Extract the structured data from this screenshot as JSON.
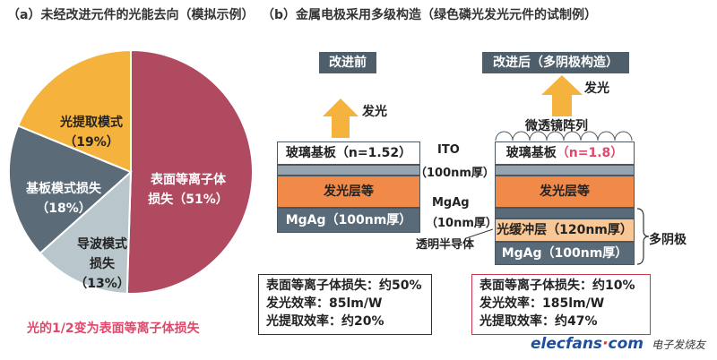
{
  "left_title": "（a）未经改进元件的光能去向（模拟示例）",
  "right_title": "（b）金属电极采用多级构造（绿色磷光发光元件的试制例）",
  "pie": {
    "slices": [
      {
        "label_lines": [
          "表面等离子体",
          "损失（51%）"
        ],
        "value": 51,
        "color": "#b04a60"
      },
      {
        "label_lines": [
          "导波模式",
          "损失",
          "（13%）"
        ],
        "value": 13,
        "color": "#b9c6cc"
      },
      {
        "label_lines": [
          "基板模式损失",
          "（18%）"
        ],
        "value": 18,
        "color": "#5b6c78"
      },
      {
        "label_lines": [
          "光提取模式",
          "（19%）"
        ],
        "value": 19,
        "color": "#f5b23c"
      }
    ],
    "caption": "光的1/2变为表面等离子体损失",
    "caption_color": "#e0486b"
  },
  "before": {
    "header": "改进前",
    "light": "发光",
    "glass": "玻璃基板（n=1.52）",
    "emit": "发光层等",
    "mgag": "MgAg（100nm厚）",
    "metrics": [
      "表面等离子体损失：约50%",
      "发光效率：85lm/W",
      "光提取效率：约20%"
    ]
  },
  "after": {
    "header": "改进后（多阴极构造）",
    "light": "发光",
    "microlens": "微透镜阵列",
    "glass_prefix": "玻璃基板",
    "glass_n": "（n=1.8）",
    "emit": "发光层等",
    "buffer": "光缓冲层（120nm厚）",
    "mgag": "MgAg（100nm厚）",
    "multi_cathode": "多阴极",
    "metrics": [
      "表面等离子体损失：约10%",
      "发光效率：185lm/W",
      "光提取效率：约47%"
    ]
  },
  "middle": {
    "ito": "ITO",
    "ito_thickness": "（100nm厚）",
    "mgag": "MgAg",
    "mgag_thickness": "（10nm厚）",
    "semi": "透明半导体"
  },
  "watermark": {
    "brand": "elecfans",
    "dot": "·",
    "com": "com",
    "cn": "电子发烧友"
  }
}
